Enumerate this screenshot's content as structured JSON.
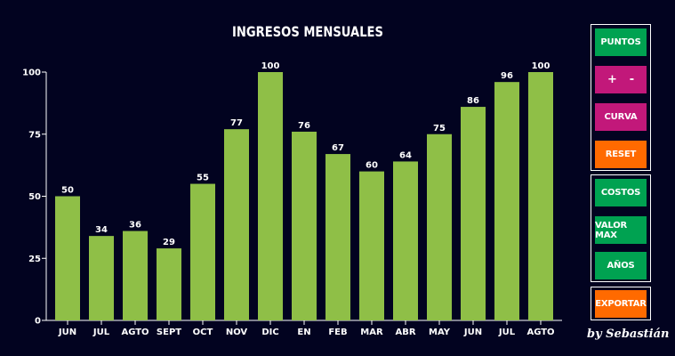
{
  "chart_data": {
    "type": "bar",
    "title": "INGRESOS MENSUALES",
    "categories": [
      "JUN",
      "JUL",
      "AGTO",
      "SEPT",
      "OCT",
      "NOV",
      "DIC",
      "EN",
      "FEB",
      "MAR",
      "ABR",
      "MAY",
      "JUN",
      "JUL",
      "AGTO"
    ],
    "values": [
      50,
      34,
      36,
      29,
      55,
      77,
      100,
      76,
      67,
      60,
      64,
      75,
      86,
      96,
      100
    ],
    "ylim": [
      0,
      100
    ],
    "yticks": [
      0,
      25,
      50,
      75,
      100
    ],
    "grid": false,
    "data_labels": true,
    "bar_color": "#8fbf47"
  },
  "controls": {
    "points_label": "PUNTOS",
    "zoom_in_label": "+",
    "zoom_out_label": "-",
    "curve_label": "CURVA",
    "reset_label": "RESET",
    "costs_label": "COSTOS",
    "max_value_label": "VALOR MAX",
    "years_label": "AÑOS",
    "export_label": "EXPORTAR"
  },
  "signature": "by Sebastián",
  "colors": {
    "background": "#020320",
    "green": "#00a251",
    "magenta": "#c2187a",
    "orange": "#ff6a00"
  }
}
